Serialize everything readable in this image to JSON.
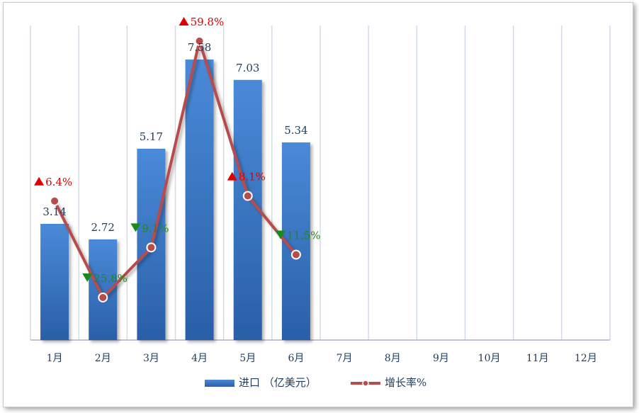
{
  "chart_data": {
    "type": "bar",
    "categories": [
      "1月",
      "2月",
      "3月",
      "4月",
      "5月",
      "6月",
      "7月",
      "8月",
      "9月",
      "10月",
      "11月",
      "12月"
    ],
    "series": [
      {
        "name": "进口（亿美元）",
        "type": "bar",
        "values": [
          3.14,
          2.72,
          5.17,
          7.58,
          7.03,
          5.34,
          null,
          null,
          null,
          null,
          null,
          null
        ],
        "labels": [
          "3.14",
          "2.72",
          "5.17",
          "7.58",
          "7.03",
          "5.34"
        ]
      },
      {
        "name": "增长率%",
        "type": "line",
        "values": [
          6.4,
          -25.8,
          -9.1,
          59.8,
          8.1,
          -11.5,
          null,
          null,
          null,
          null,
          null,
          null
        ],
        "labels": [
          "6.4%",
          "25.8%",
          "9.1%",
          "59.8%",
          "8.1%",
          "11.5%"
        ],
        "direction": [
          "up",
          "down",
          "down",
          "up",
          "up",
          "down"
        ]
      }
    ],
    "legend": {
      "position": "bottom",
      "items": [
        "进口 （亿美元）",
        "增长率%"
      ]
    },
    "colors": {
      "bar": "#3a7ccc",
      "line": "#b84b4b",
      "up": "#e00000",
      "down": "#1a8a1a",
      "grid": "#d4dcea",
      "axis": "#aab4c4",
      "label": "#1f3b5c"
    },
    "bar_ylim": [
      0,
      8.5
    ],
    "line_ylim": [
      -40,
      65
    ],
    "grid": true
  }
}
